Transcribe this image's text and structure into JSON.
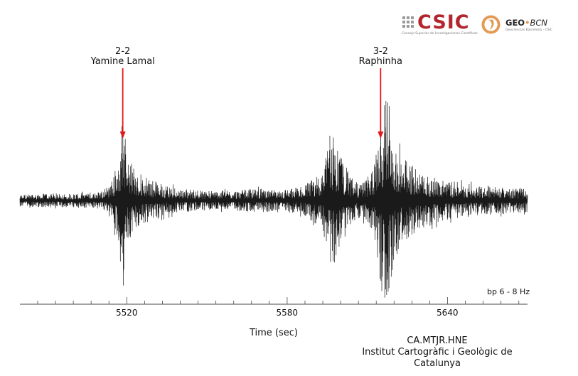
{
  "header": {
    "csic_logo_text": "CSIC",
    "csic_subtitle": "Consejo Superior de Investigaciones Científicas",
    "geo_logo_text_a": "GEO",
    "geo_logo_text_b": "BCN",
    "geo_subtitle": "Geociencias Barcelona - CSIC"
  },
  "annotations": [
    {
      "line1": "2-2",
      "line2": "Yamine Lamal",
      "time": 5518.5
    },
    {
      "line1": "3-2",
      "line2": "Raphinha",
      "time": 5615
    }
  ],
  "filter_label": "bp 6 - 8 Hz",
  "station": {
    "line1": "CA.MTJR.HNE",
    "line2": "Institut Cartogràfic i Geològic de",
    "line3": "Catalunya"
  },
  "colors": {
    "trace": "#1a1a1a",
    "arrow": "#e0191c",
    "axis": "#444444",
    "csic_red": "#b3262e",
    "geo_orange": "#e39a55"
  },
  "chart_data": {
    "type": "line",
    "title": "",
    "xlabel": "Time (sec)",
    "ylabel": "",
    "xlim": [
      5480,
      5670
    ],
    "xticks": [
      5520,
      5580,
      5640
    ],
    "minor_tick_step": 6.67,
    "grid": false,
    "legend": "none",
    "series": [
      {
        "envelope_x": [
          5480,
          5490,
          5500,
          5510,
          5514,
          5517,
          5518.5,
          5520,
          5523,
          5527,
          5532,
          5540,
          5550,
          5560,
          5568,
          5572,
          5576,
          5580,
          5585,
          5590,
          5594,
          5597,
          5599,
          5601,
          5604,
          5607,
          5610,
          5613,
          5614,
          5615,
          5616,
          5617,
          5618,
          5619,
          5621,
          5624,
          5628,
          5633,
          5640,
          5650,
          5660,
          5670
        ],
        "envelope_y": [
          0.06,
          0.07,
          0.07,
          0.09,
          0.18,
          0.42,
          0.95,
          0.48,
          0.32,
          0.24,
          0.18,
          0.12,
          0.1,
          0.1,
          0.12,
          0.12,
          0.1,
          0.12,
          0.14,
          0.22,
          0.38,
          0.7,
          0.55,
          0.4,
          0.24,
          0.18,
          0.22,
          0.42,
          0.62,
          0.85,
          0.72,
          0.95,
          1.0,
          0.82,
          0.55,
          0.42,
          0.34,
          0.26,
          0.2,
          0.16,
          0.14,
          0.12
        ],
        "peak_amplitudes": [
          {
            "time": 5518.5,
            "amplitude": 0.9
          },
          {
            "time": 5596,
            "amplitude": 0.65
          },
          {
            "time": 5617,
            "amplitude": 1.0
          }
        ]
      }
    ]
  }
}
